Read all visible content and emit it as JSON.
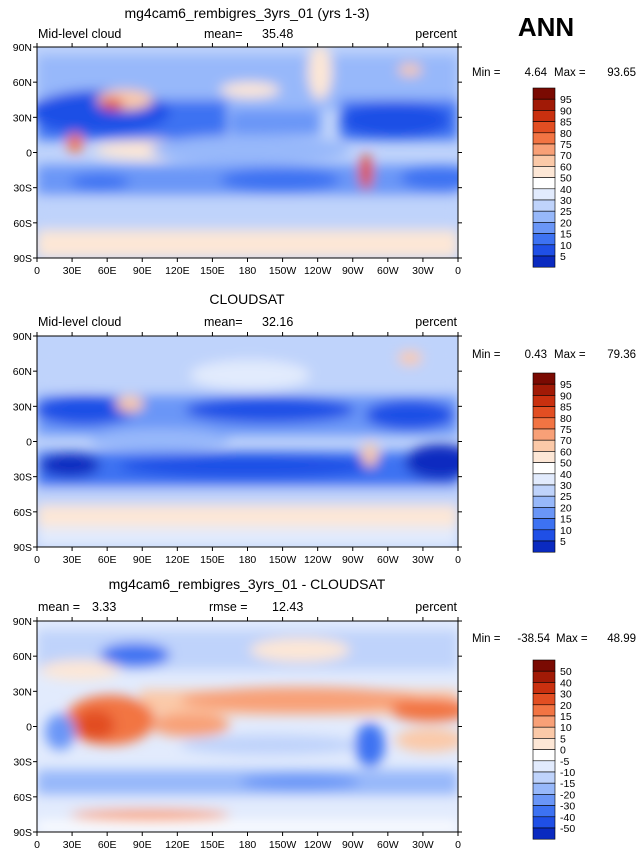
{
  "season": "ANN",
  "colors": {
    "abs_scale": [
      "#000a80",
      "#0a2ac0",
      "#1f4fe6",
      "#3d72f2",
      "#6a96f7",
      "#97b8fa",
      "#bfd3fb",
      "#e2ebfd",
      "#ffffff",
      "#fde7d6",
      "#fbc9a8",
      "#f8a077",
      "#f27443",
      "#e24e22",
      "#c9300f",
      "#a11a06",
      "#7a0a02"
    ],
    "diff_scale": [
      "#000a80",
      "#0a2ac0",
      "#1f4fe6",
      "#3d72f2",
      "#6a96f7",
      "#97b8fa",
      "#bfd3fb",
      "#e2ebfd",
      "#ffffff",
      "#fde7d6",
      "#fbc9a8",
      "#f8a077",
      "#f27443",
      "#e24e22",
      "#c9300f",
      "#a11a06",
      "#7a0a02"
    ]
  },
  "panels": [
    {
      "title": "mg4cam6_rembigres_3yrs_01 (yrs 1-3)",
      "left_label": "Mid-level cloud",
      "stat_label": "mean=",
      "stat_value": "35.48",
      "units": "percent",
      "min_label": "Min =",
      "min_value": "4.64",
      "max_label": "Max =",
      "max_value": "93.65",
      "colorbar_levels": [
        "95",
        "90",
        "85",
        "80",
        "75",
        "70",
        "60",
        "50",
        "40",
        "30",
        "25",
        "20",
        "15",
        "10",
        "5"
      ]
    },
    {
      "title": "CLOUDSAT",
      "left_label": "Mid-level cloud",
      "stat_label": "mean=",
      "stat_value": "32.16",
      "units": "percent",
      "min_label": "Min =",
      "min_value": "0.43",
      "max_label": "Max =",
      "max_value": "79.36",
      "colorbar_levels": [
        "95",
        "90",
        "85",
        "80",
        "75",
        "70",
        "60",
        "50",
        "40",
        "30",
        "25",
        "20",
        "15",
        "10",
        "5"
      ]
    },
    {
      "title": "mg4cam6_rembigres_3yrs_01 - CLOUDSAT",
      "left_label": "mean =",
      "left_value": "3.33",
      "stat_label": "rmse =",
      "stat_value": "12.43",
      "units": "percent",
      "min_label": "Min =",
      "min_value": "-38.54",
      "max_label": "Max =",
      "max_value": "48.99",
      "colorbar_levels": [
        "50",
        "40",
        "30",
        "20",
        "15",
        "10",
        "5",
        "0",
        "-5",
        "-10",
        "-15",
        "-20",
        "-30",
        "-40",
        "-50"
      ]
    }
  ],
  "axes": {
    "lat_ticks": [
      "90N",
      "60N",
      "30N",
      "0",
      "30S",
      "60S",
      "90S"
    ],
    "lon_ticks": [
      "0",
      "30E",
      "60E",
      "90E",
      "120E",
      "150E",
      "180",
      "150W",
      "120W",
      "90W",
      "60W",
      "30W",
      "0"
    ]
  },
  "chart_data": [
    {
      "type": "heatmap",
      "title": "mg4cam6_rembigres_3yrs_01 (yrs 1-3)",
      "variable": "Mid-level cloud",
      "units": "percent",
      "mean": 35.48,
      "min": 4.64,
      "max": 93.65,
      "contour_levels": [
        5,
        10,
        15,
        20,
        25,
        30,
        40,
        50,
        60,
        70,
        75,
        80,
        85,
        90,
        95
      ],
      "xlim": [
        0,
        360
      ],
      "ylim": [
        -90,
        90
      ],
      "x_ticks": [
        "0",
        "30E",
        "60E",
        "90E",
        "120E",
        "150E",
        "180",
        "150W",
        "120W",
        "90W",
        "60W",
        "30W",
        "0"
      ],
      "y_ticks": [
        "90N",
        "60N",
        "30N",
        "0",
        "30S",
        "60S",
        "90S"
      ]
    },
    {
      "type": "heatmap",
      "title": "CLOUDSAT",
      "variable": "Mid-level cloud",
      "units": "percent",
      "mean": 32.16,
      "min": 0.43,
      "max": 79.36,
      "contour_levels": [
        5,
        10,
        15,
        20,
        25,
        30,
        40,
        50,
        60,
        70,
        75,
        80,
        85,
        90,
        95
      ],
      "xlim": [
        0,
        360
      ],
      "ylim": [
        -90,
        90
      ],
      "x_ticks": [
        "0",
        "30E",
        "60E",
        "90E",
        "120E",
        "150E",
        "180",
        "150W",
        "120W",
        "90W",
        "60W",
        "30W",
        "0"
      ],
      "y_ticks": [
        "90N",
        "60N",
        "30N",
        "0",
        "30S",
        "60S",
        "90S"
      ]
    },
    {
      "type": "heatmap",
      "title": "mg4cam6_rembigres_3yrs_01 - CLOUDSAT",
      "units": "percent",
      "mean": 3.33,
      "rmse": 12.43,
      "min": -38.54,
      "max": 48.99,
      "contour_levels": [
        -50,
        -40,
        -30,
        -20,
        -15,
        -10,
        -5,
        0,
        5,
        10,
        15,
        20,
        30,
        40,
        50
      ],
      "xlim": [
        0,
        360
      ],
      "ylim": [
        -90,
        90
      ],
      "x_ticks": [
        "0",
        "30E",
        "60E",
        "90E",
        "120E",
        "150E",
        "180",
        "150W",
        "120W",
        "90W",
        "60W",
        "30W",
        "0"
      ],
      "y_ticks": [
        "90N",
        "60N",
        "30N",
        "0",
        "30S",
        "60S",
        "90S"
      ]
    }
  ]
}
